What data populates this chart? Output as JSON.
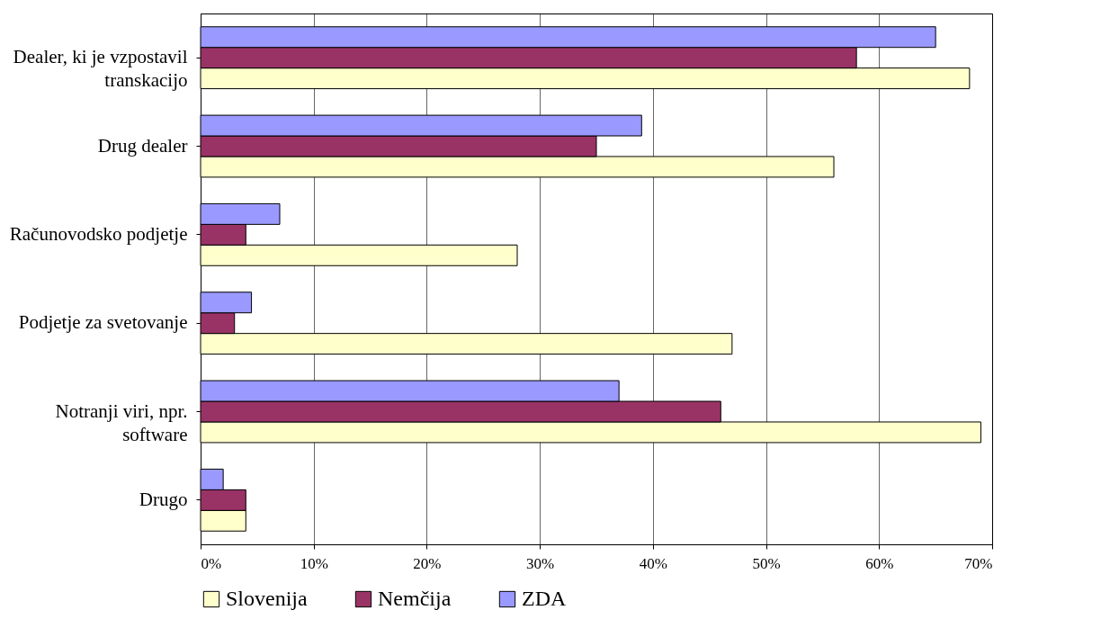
{
  "chart_data": {
    "type": "bar",
    "orientation": "horizontal",
    "categories": [
      "Dealer, ki je vzpostavil transkacijo",
      "Drug dealer",
      "Računovodsko podjetje",
      "Podjetje za svetovanje",
      "Notranji viri, npr. software",
      "Drugo"
    ],
    "series": [
      {
        "name": "Slovenija",
        "color": "#ffffcc",
        "values": [
          68,
          56,
          28,
          47,
          69,
          4
        ]
      },
      {
        "name": "Nemčija",
        "color": "#993366",
        "values": [
          58,
          35,
          4,
          3,
          46,
          4
        ]
      },
      {
        "name": "ZDA",
        "color": "#9999ff",
        "values": [
          65,
          39,
          7,
          4.5,
          37,
          2
        ]
      }
    ],
    "xlim": [
      0,
      70
    ],
    "xticks": [
      {
        "value": 0,
        "label": "0%"
      },
      {
        "value": 10,
        "label": "10%"
      },
      {
        "value": 20,
        "label": "20%"
      },
      {
        "value": 30,
        "label": "30%"
      },
      {
        "value": 40,
        "label": "40%"
      },
      {
        "value": 50,
        "label": "50%"
      },
      {
        "value": 60,
        "label": "60%"
      },
      {
        "value": 70,
        "label": "70%"
      }
    ],
    "grid": "x",
    "legend": "bottom"
  }
}
